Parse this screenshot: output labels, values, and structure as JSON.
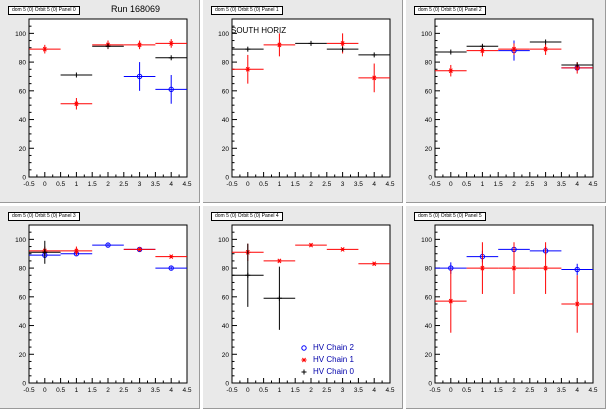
{
  "run_label": "Run 168069",
  "legend": [
    {
      "label": "HV Chain 2",
      "marker": "circle",
      "color": "#0000ff"
    },
    {
      "label": "HV Chain 1",
      "marker": "star",
      "color": "#ff0000"
    },
    {
      "label": "HV Chain 0",
      "marker": "plus",
      "color": "#000000"
    }
  ],
  "colors": {
    "pad_background": "#e9e9e9",
    "frame_background": "#ffffff",
    "chain2": "#0000ff",
    "chain1": "#ff0000",
    "chain0": "#000000"
  },
  "chart_data": [
    {
      "type": "scatter",
      "title": "dom 5 (0) Orbit 5 (0) Panel 0",
      "note": "",
      "xlim": [
        -0.5,
        4.5
      ],
      "ylim": [
        0,
        110
      ],
      "xticks": [
        "-0.5",
        "0",
        "0.5",
        "1",
        "1.5",
        "2",
        "2.5",
        "3",
        "3.5",
        "4",
        "4.5"
      ],
      "yticks": [
        "0",
        "20",
        "40",
        "60",
        "80",
        "100"
      ],
      "series": [
        {
          "name": "HV Chain 2",
          "marker": "circle",
          "color": "#0000ff",
          "points": [
            {
              "x": 3,
              "y": 70,
              "xerr": 0.5,
              "yerr": 10
            },
            {
              "x": 4,
              "y": 61,
              "xerr": 0.5,
              "yerr": 10
            }
          ]
        },
        {
          "name": "HV Chain 1",
          "marker": "star",
          "color": "#ff0000",
          "points": [
            {
              "x": 0,
              "y": 89,
              "xerr": 0.5,
              "yerr": 3
            },
            {
              "x": 1,
              "y": 51,
              "xerr": 0.5,
              "yerr": 4
            },
            {
              "x": 2,
              "y": 92,
              "xerr": 0.5,
              "yerr": 3
            },
            {
              "x": 3,
              "y": 92,
              "xerr": 0.5,
              "yerr": 3
            },
            {
              "x": 4,
              "y": 93,
              "xerr": 0.5,
              "yerr": 3
            }
          ]
        },
        {
          "name": "HV Chain 0",
          "marker": "plus",
          "color": "#000000",
          "points": [
            {
              "x": 1,
              "y": 71,
              "xerr": 0.5,
              "yerr": 0
            },
            {
              "x": 2,
              "y": 91,
              "xerr": 0.5,
              "yerr": 0
            },
            {
              "x": 4,
              "y": 83,
              "xerr": 0.5,
              "yerr": 0
            }
          ]
        }
      ]
    },
    {
      "type": "scatter",
      "title": "dom 5 (0) Orbit 5 (0) Panel 1",
      "note": "SOUTH HORIZ",
      "xlim": [
        -0.5,
        4.5
      ],
      "ylim": [
        0,
        110
      ],
      "xticks": [
        "-0.5",
        "0",
        "0.5",
        "1",
        "1.5",
        "2",
        "2.5",
        "3",
        "3.5",
        "4",
        "4.5"
      ],
      "yticks": [
        "0",
        "20",
        "40",
        "60",
        "80",
        "100"
      ],
      "series": [
        {
          "name": "HV Chain 2",
          "marker": "circle",
          "color": "#0000ff",
          "points": []
        },
        {
          "name": "HV Chain 1",
          "marker": "star",
          "color": "#ff0000",
          "points": [
            {
              "x": 0,
              "y": 75,
              "xerr": 0.5,
              "yerr": 10
            },
            {
              "x": 1,
              "y": 92,
              "xerr": 0.5,
              "yerr": 8
            },
            {
              "x": 3,
              "y": 93,
              "xerr": 0.5,
              "yerr": 7
            },
            {
              "x": 4,
              "y": 69,
              "xerr": 0.5,
              "yerr": 10
            }
          ]
        },
        {
          "name": "HV Chain 0",
          "marker": "plus",
          "color": "#000000",
          "points": [
            {
              "x": 0,
              "y": 89,
              "xerr": 0.5,
              "yerr": 0
            },
            {
              "x": 2,
              "y": 93,
              "xerr": 0.5,
              "yerr": 0
            },
            {
              "x": 3,
              "y": 89,
              "xerr": 0.5,
              "yerr": 0
            },
            {
              "x": 4,
              "y": 85,
              "xerr": 0.5,
              "yerr": 0
            }
          ]
        }
      ]
    },
    {
      "type": "scatter",
      "title": "dom 5 (0) Orbit 5 (0) Panel 2",
      "note": "",
      "xlim": [
        -0.5,
        4.5
      ],
      "ylim": [
        0,
        110
      ],
      "xticks": [
        "-0.5",
        "0",
        "0.5",
        "1",
        "1.5",
        "2",
        "2.5",
        "3",
        "3.5",
        "4",
        "4.5"
      ],
      "yticks": [
        "0",
        "20",
        "40",
        "60",
        "80",
        "100"
      ],
      "series": [
        {
          "name": "HV Chain 2",
          "marker": "circle",
          "color": "#0000ff",
          "points": [
            {
              "x": 2,
              "y": 88,
              "xerr": 0.5,
              "yerr": 7
            },
            {
              "x": 4,
              "y": 76,
              "xerr": 0.5,
              "yerr": 2
            }
          ]
        },
        {
          "name": "HV Chain 1",
          "marker": "star",
          "color": "#ff0000",
          "points": [
            {
              "x": 0,
              "y": 74,
              "xerr": 0.5,
              "yerr": 4
            },
            {
              "x": 1,
              "y": 88,
              "xerr": 0.5,
              "yerr": 4
            },
            {
              "x": 2,
              "y": 89,
              "xerr": 0.5,
              "yerr": 4
            },
            {
              "x": 3,
              "y": 89,
              "xerr": 0.5,
              "yerr": 4
            },
            {
              "x": 4,
              "y": 76,
              "xerr": 0.5,
              "yerr": 4
            }
          ]
        },
        {
          "name": "HV Chain 0",
          "marker": "plus",
          "color": "#000000",
          "points": [
            {
              "x": 0,
              "y": 87,
              "xerr": 0.5,
              "yerr": 0
            },
            {
              "x": 1,
              "y": 91,
              "xerr": 0.5,
              "yerr": 0
            },
            {
              "x": 3,
              "y": 94,
              "xerr": 0.5,
              "yerr": 0
            },
            {
              "x": 4,
              "y": 78,
              "xerr": 0.5,
              "yerr": 0
            }
          ]
        }
      ]
    },
    {
      "type": "scatter",
      "title": "dom 5 (0) Orbit 5 (0) Panel 3",
      "note": "",
      "xlim": [
        -0.5,
        4.5
      ],
      "ylim": [
        0,
        110
      ],
      "xticks": [
        "-0.5",
        "0",
        "0.5",
        "1",
        "1.5",
        "2",
        "2.5",
        "3",
        "3.5",
        "4",
        "4.5"
      ],
      "yticks": [
        "0",
        "20",
        "40",
        "60",
        "80",
        "100"
      ],
      "series": [
        {
          "name": "HV Chain 2",
          "marker": "circle",
          "color": "#0000ff",
          "points": [
            {
              "x": 0,
              "y": 89,
              "xerr": 0.5,
              "yerr": 2
            },
            {
              "x": 1,
              "y": 90,
              "xerr": 0.5,
              "yerr": 1
            },
            {
              "x": 2,
              "y": 96,
              "xerr": 0.5,
              "yerr": 1
            },
            {
              "x": 3,
              "y": 93,
              "xerr": 0.5,
              "yerr": 1
            },
            {
              "x": 4,
              "y": 80,
              "xerr": 0.5,
              "yerr": 1
            }
          ]
        },
        {
          "name": "HV Chain 1",
          "marker": "star",
          "color": "#ff0000",
          "points": [
            {
              "x": 0,
              "y": 92,
              "xerr": 0.5,
              "yerr": 3
            },
            {
              "x": 1,
              "y": 92,
              "xerr": 0.5,
              "yerr": 3
            },
            {
              "x": 3,
              "y": 93,
              "xerr": 0.5,
              "yerr": 1
            },
            {
              "x": 4,
              "y": 88,
              "xerr": 0.5,
              "yerr": 1
            }
          ]
        },
        {
          "name": "HV Chain 0",
          "marker": "plus",
          "color": "#000000",
          "points": [
            {
              "x": 0,
              "y": 91,
              "xerr": 0.5,
              "yerr": 8
            }
          ]
        }
      ]
    },
    {
      "type": "scatter",
      "title": "dom 5 (0) Orbit 5 (0) Panel 4",
      "note": "",
      "xlim": [
        -0.5,
        4.5
      ],
      "ylim": [
        0,
        110
      ],
      "xticks": [
        "-0.5",
        "0",
        "0.5",
        "1",
        "1.5",
        "2",
        "2.5",
        "3",
        "3.5",
        "4",
        "4.5"
      ],
      "yticks": [
        "0",
        "20",
        "40",
        "60",
        "80",
        "100"
      ],
      "series": [
        {
          "name": "HV Chain 2",
          "marker": "circle",
          "color": "#0000ff",
          "points": []
        },
        {
          "name": "HV Chain 1",
          "marker": "star",
          "color": "#ff0000",
          "points": [
            {
              "x": 0,
              "y": 91,
              "xerr": 0.5,
              "yerr": 6
            },
            {
              "x": 1,
              "y": 85,
              "xerr": 0.5,
              "yerr": 1
            },
            {
              "x": 2,
              "y": 96,
              "xerr": 0.5,
              "yerr": 1
            },
            {
              "x": 3,
              "y": 93,
              "xerr": 0.5,
              "yerr": 1
            },
            {
              "x": 4,
              "y": 83,
              "xerr": 0.5,
              "yerr": 1
            }
          ]
        },
        {
          "name": "HV Chain 0",
          "marker": "plus",
          "color": "#000000",
          "points": [
            {
              "x": 0,
              "y": 75,
              "xerr": 0.5,
              "yerr": 22
            },
            {
              "x": 1,
              "y": 59,
              "xerr": 0.5,
              "yerr": 22
            }
          ]
        }
      ]
    },
    {
      "type": "scatter",
      "title": "dom 5 (0) Orbit 5 (0) Panel 5",
      "note": "",
      "xlim": [
        -0.5,
        4.5
      ],
      "ylim": [
        0,
        110
      ],
      "xticks": [
        "-0.5",
        "0",
        "0.5",
        "1",
        "1.5",
        "2",
        "2.5",
        "3",
        "3.5",
        "4",
        "4.5"
      ],
      "yticks": [
        "0",
        "20",
        "40",
        "60",
        "80",
        "100"
      ],
      "series": [
        {
          "name": "HV Chain 2",
          "marker": "circle",
          "color": "#0000ff",
          "points": [
            {
              "x": 0,
              "y": 80,
              "xerr": 0.5,
              "yerr": 4
            },
            {
              "x": 1,
              "y": 88,
              "xerr": 0.5,
              "yerr": 4
            },
            {
              "x": 2,
              "y": 93,
              "xerr": 0.5,
              "yerr": 4
            },
            {
              "x": 3,
              "y": 92,
              "xerr": 0.5,
              "yerr": 3
            },
            {
              "x": 4,
              "y": 79,
              "xerr": 0.5,
              "yerr": 4
            }
          ]
        },
        {
          "name": "HV Chain 1",
          "marker": "star",
          "color": "#ff0000",
          "points": [
            {
              "x": 0,
              "y": 57,
              "xerr": 0.5,
              "yerr": 22
            },
            {
              "x": 1,
              "y": 80,
              "xerr": 0.5,
              "yerr": 18
            },
            {
              "x": 2,
              "y": 80,
              "xerr": 0.5,
              "yerr": 18
            },
            {
              "x": 3,
              "y": 80,
              "xerr": 0.5,
              "yerr": 18
            },
            {
              "x": 4,
              "y": 55,
              "xerr": 0.5,
              "yerr": 20
            }
          ]
        },
        {
          "name": "HV Chain 0",
          "marker": "plus",
          "color": "#000000",
          "points": []
        }
      ]
    }
  ]
}
